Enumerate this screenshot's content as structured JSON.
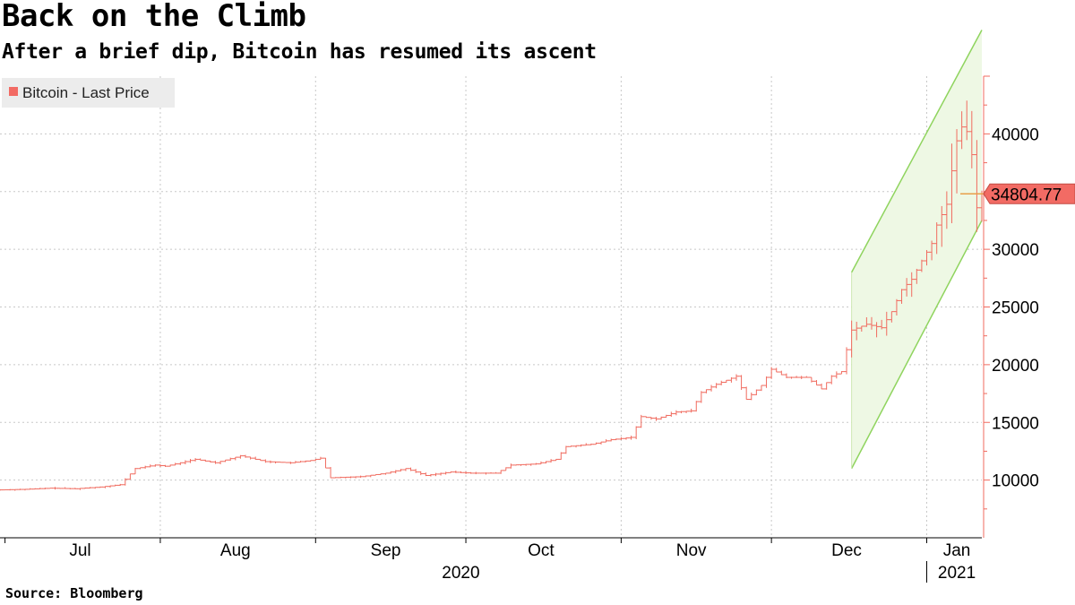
{
  "header": {
    "title": "Back on the Climb",
    "subtitle": "After a brief dip, Bitcoin has resumed its ascent"
  },
  "footer": {
    "source": "Source: Bloomberg"
  },
  "colors": {
    "series": "#f06b5f",
    "legend_swatch": "#f26b64",
    "channel_line": "#8fd45e",
    "channel_fill": "#eef8e4",
    "grid": "#c8c8c8",
    "axis": "#f06b5f",
    "price_badge": "#f26b64"
  },
  "chart_data": {
    "type": "line",
    "subtype": "OHLC bars (daily)",
    "title": "Back on the Climb",
    "subtitle": "After a brief dip, Bitcoin has resumed its ascent",
    "legend": [
      {
        "name": "Bitcoin - Last Price",
        "placement": "top-left"
      }
    ],
    "x_range": [
      "2020-06-30",
      "2021-01-12"
    ],
    "x_tick_labels": [
      "Jul",
      "Aug",
      "Sep",
      "Oct",
      "Nov",
      "Dec",
      "Jan"
    ],
    "year_labels": [
      "2020",
      "2021"
    ],
    "ylim": [
      5000,
      45000
    ],
    "y_ticks": [
      10000,
      15000,
      20000,
      25000,
      30000,
      35000,
      40000
    ],
    "y_tick_labels": [
      "10000",
      "15000",
      "20000",
      "25000",
      "30000",
      "35000",
      "40000"
    ],
    "last_price": 34804.77,
    "last_price_label": "34804.77",
    "grid": true,
    "series": [
      {
        "name": "Bitcoin - Last Price",
        "approx_daily_close_waypoints": [
          [
            "2020-06-30",
            9150
          ],
          [
            "2020-07-05",
            9200
          ],
          [
            "2020-07-10",
            9300
          ],
          [
            "2020-07-15",
            9250
          ],
          [
            "2020-07-20",
            9400
          ],
          [
            "2020-07-24",
            9600
          ],
          [
            "2020-07-27",
            11000
          ],
          [
            "2020-07-31",
            11300
          ],
          [
            "2020-08-02",
            11200
          ],
          [
            "2020-08-08",
            11800
          ],
          [
            "2020-08-12",
            11500
          ],
          [
            "2020-08-17",
            12100
          ],
          [
            "2020-08-22",
            11600
          ],
          [
            "2020-08-27",
            11500
          ],
          [
            "2020-08-31",
            11700
          ],
          [
            "2020-09-02",
            11900
          ],
          [
            "2020-09-04",
            10200
          ],
          [
            "2020-09-10",
            10300
          ],
          [
            "2020-09-15",
            10600
          ],
          [
            "2020-09-19",
            11000
          ],
          [
            "2020-09-23",
            10400
          ],
          [
            "2020-09-28",
            10700
          ],
          [
            "2020-10-02",
            10600
          ],
          [
            "2020-10-07",
            10600
          ],
          [
            "2020-10-10",
            11300
          ],
          [
            "2020-10-15",
            11400
          ],
          [
            "2020-10-19",
            11800
          ],
          [
            "2020-10-21",
            12900
          ],
          [
            "2020-10-26",
            13100
          ],
          [
            "2020-10-30",
            13500
          ],
          [
            "2020-11-03",
            13700
          ],
          [
            "2020-11-05",
            15500
          ],
          [
            "2020-11-08",
            15300
          ],
          [
            "2020-11-12",
            15900
          ],
          [
            "2020-11-15",
            16000
          ],
          [
            "2020-11-17",
            17600
          ],
          [
            "2020-11-20",
            18300
          ],
          [
            "2020-11-24",
            19000
          ],
          [
            "2020-11-26",
            17000
          ],
          [
            "2020-11-29",
            18200
          ],
          [
            "2020-12-01",
            19600
          ],
          [
            "2020-12-04",
            18900
          ],
          [
            "2020-12-08",
            18900
          ],
          [
            "2020-12-11",
            17900
          ],
          [
            "2020-12-13",
            19000
          ],
          [
            "2020-12-15",
            19400
          ],
          [
            "2020-12-16",
            21300
          ],
          [
            "2020-12-17",
            23000
          ],
          [
            "2020-12-20",
            23500
          ],
          [
            "2020-12-23",
            23200
          ],
          [
            "2020-12-25",
            24600
          ],
          [
            "2020-12-27",
            26500
          ],
          [
            "2020-12-29",
            27400
          ],
          [
            "2020-12-31",
            29000
          ],
          [
            "2021-01-02",
            30500
          ],
          [
            "2021-01-03",
            32100
          ],
          [
            "2021-01-05",
            33900
          ],
          [
            "2021-01-06",
            36800
          ],
          [
            "2021-01-07",
            39400
          ],
          [
            "2021-01-08",
            40600
          ],
          [
            "2021-01-09",
            40200
          ],
          [
            "2021-01-10",
            38200
          ],
          [
            "2021-01-11",
            33600
          ],
          [
            "2021-01-12",
            34804.77
          ]
        ]
      },
      {
        "name": "trend channel (shaded)",
        "upper_line": [
          [
            "2020-12-17",
            28000
          ],
          [
            "2021-01-12",
            49000
          ]
        ],
        "lower_line": [
          [
            "2020-12-17",
            11000
          ],
          [
            "2021-01-12",
            32500
          ]
        ]
      }
    ]
  }
}
